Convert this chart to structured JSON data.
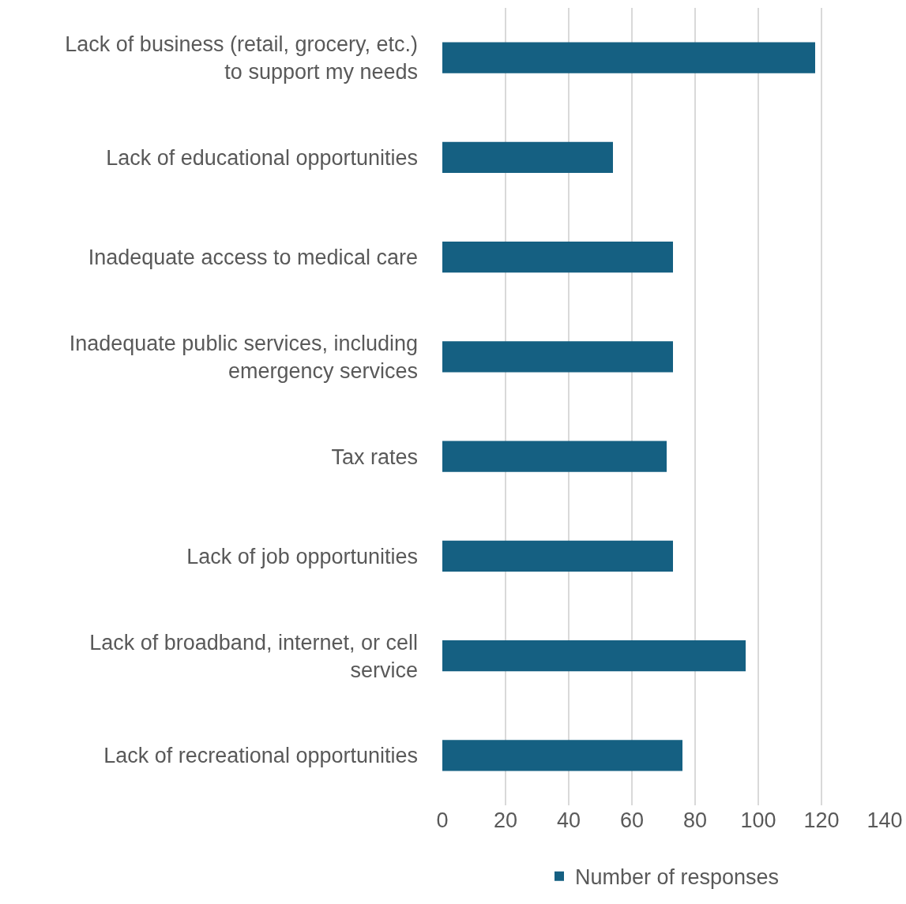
{
  "chart_data": {
    "type": "bar",
    "orientation": "horizontal",
    "categories": [
      "Lack of business (retail, grocery, etc.) to support my needs",
      "Lack of educational opportunities",
      "Inadequate access to medical care",
      "Inadequate public services, including emergency services",
      "Tax rates",
      "Lack of job opportunities",
      "Lack of broadband, internet, or cell service",
      "Lack of recreational opportunities"
    ],
    "series": [
      {
        "name": "Number of responses",
        "color": "#156082",
        "values": [
          118,
          54,
          73,
          73,
          71,
          73,
          96,
          76
        ]
      }
    ],
    "xlim": [
      0,
      140
    ],
    "xticks": [
      0,
      20,
      40,
      60,
      80,
      100,
      120,
      140
    ],
    "grid": "x",
    "legend": "bottom"
  }
}
